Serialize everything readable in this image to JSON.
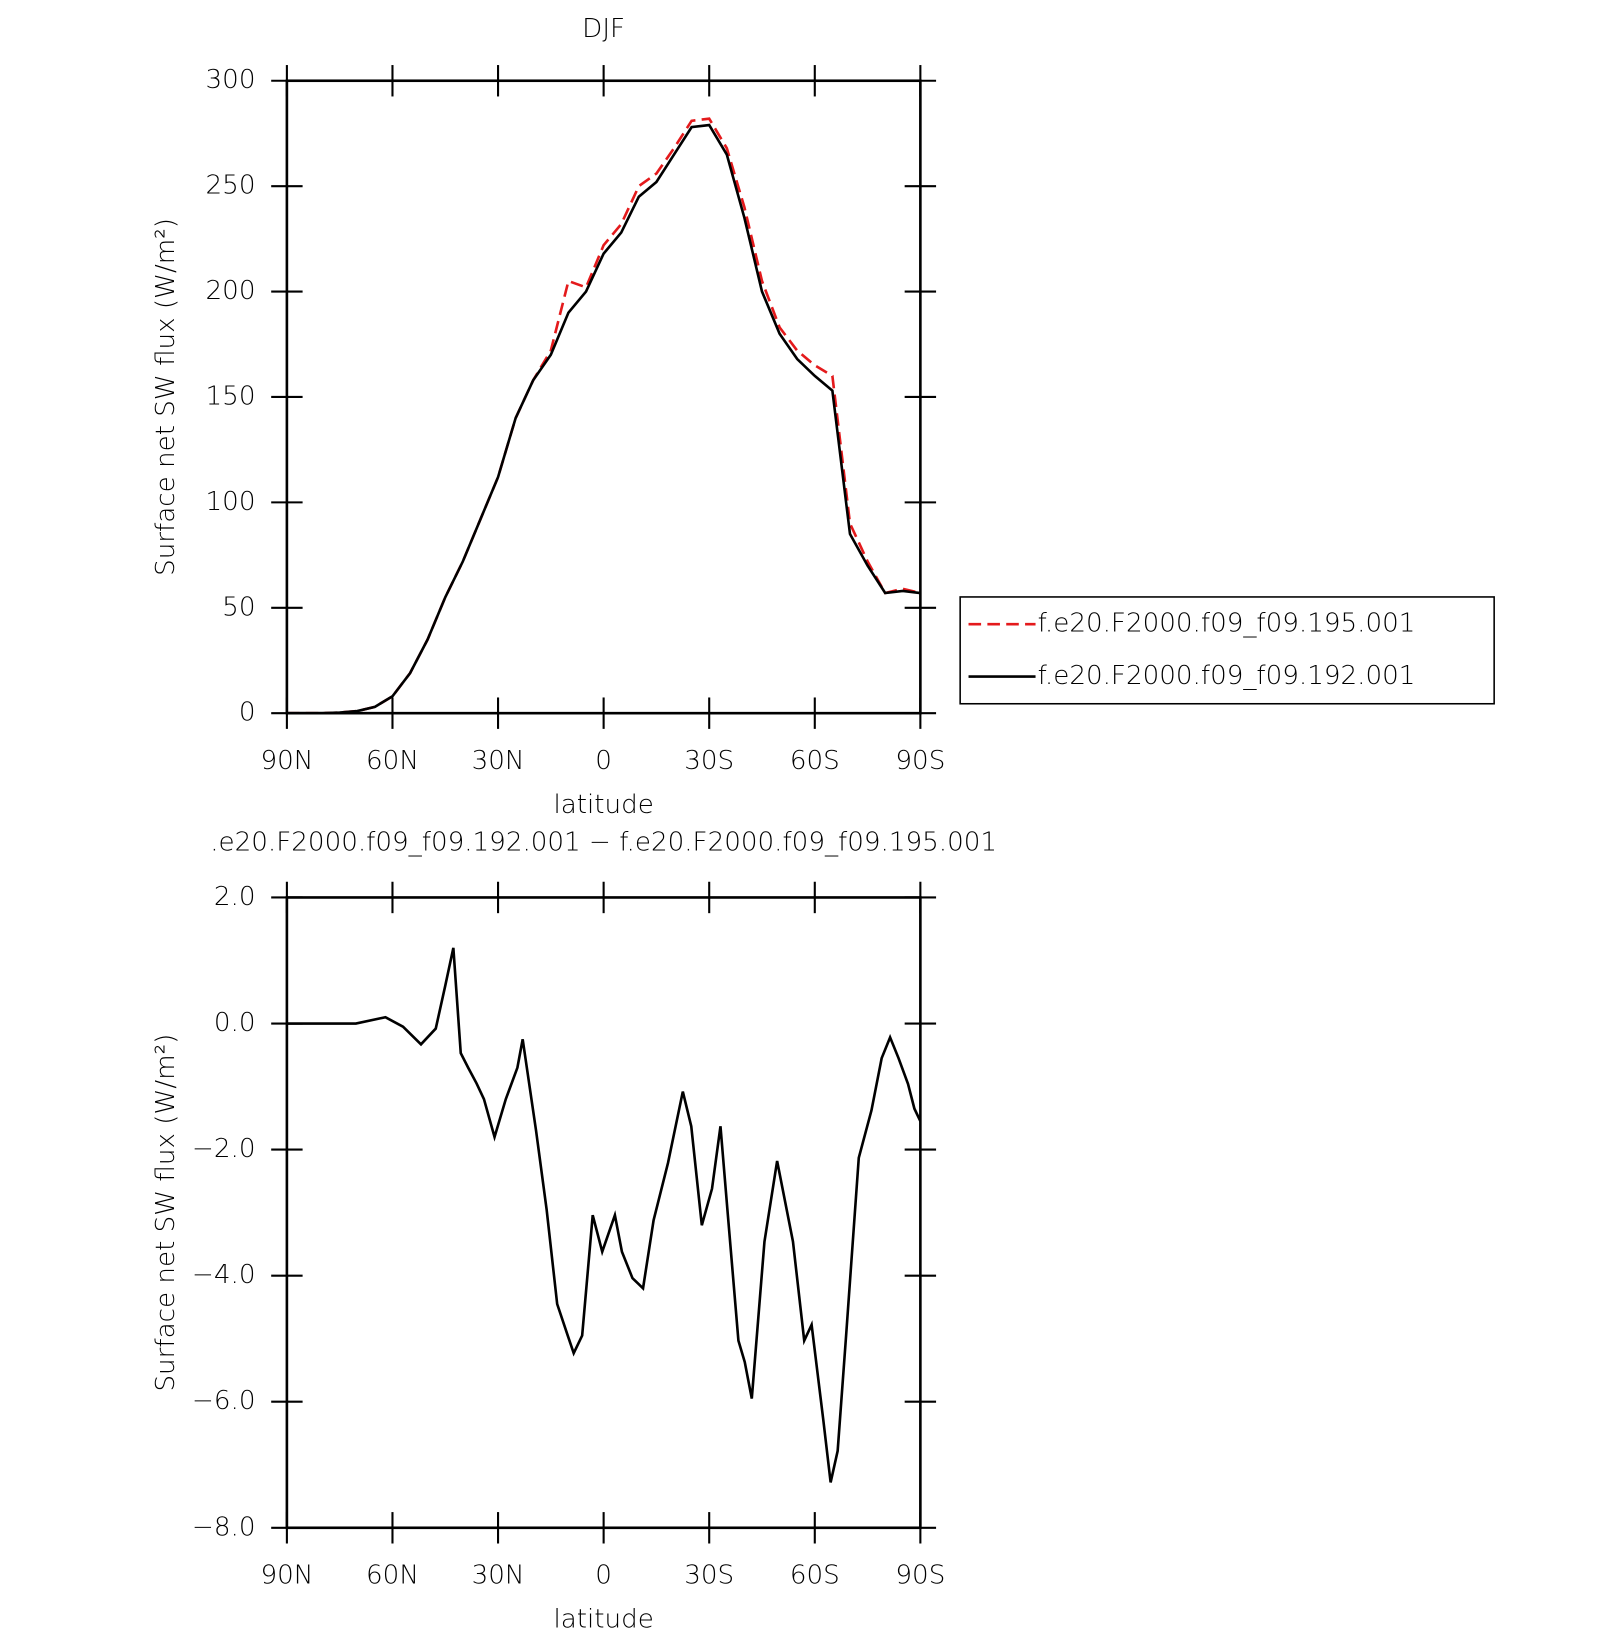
{
  "chart_data": [
    {
      "type": "line",
      "title": "DJF",
      "xlabel": "latitude",
      "ylabel": "Surface net SW flux (W/m²)",
      "x": [
        90,
        85,
        80,
        75,
        70,
        65,
        60,
        55,
        50,
        45,
        40,
        35,
        30,
        25,
        20,
        15,
        10,
        5,
        0,
        -5,
        -10,
        -15,
        -20,
        -25,
        -30,
        -35,
        -40,
        -45,
        -50,
        -55,
        -60,
        -65,
        -70,
        -75,
        -80,
        -85,
        -90
      ],
      "series": [
        {
          "name": "f.e20.F2000.f09_f09.195.001",
          "color": "#e41a1c",
          "dash": "dashed",
          "values": [
            0,
            0,
            0,
            0.3,
            1,
            3,
            8,
            19,
            35,
            55,
            72,
            92,
            112,
            140,
            158,
            172,
            205,
            202,
            222,
            232,
            250,
            256,
            268,
            281,
            282,
            268,
            240,
            205,
            183,
            172,
            165,
            160,
            90,
            72,
            57,
            59,
            57
          ]
        },
        {
          "name": "f.e20.F2000.f09_f09.192.001",
          "color": "#000000",
          "dash": "solid",
          "values": [
            0,
            0,
            0,
            0.3,
            1,
            3,
            8,
            19,
            35,
            55,
            72,
            92,
            112,
            140,
            158,
            170,
            190,
            200,
            218,
            228,
            245,
            252,
            265,
            278,
            279,
            265,
            235,
            200,
            180,
            168,
            160,
            153,
            85,
            70,
            57,
            58,
            57
          ]
        }
      ],
      "xlim": [
        90,
        -90
      ],
      "xticks": [
        {
          "value": 90,
          "label": "90N"
        },
        {
          "value": 60,
          "label": "60N"
        },
        {
          "value": 30,
          "label": "30N"
        },
        0,
        {
          "value": -30,
          "label": "30S"
        },
        {
          "value": -60,
          "label": "60S"
        },
        {
          "value": -90,
          "label": "90S"
        }
      ],
      "ylim": [
        0,
        300
      ],
      "yticks": [
        0,
        50,
        100,
        150,
        200,
        250,
        300
      ],
      "legend": "right"
    },
    {
      "type": "line",
      "title": ".e20.F2000.f09_f09.192.001 − f.e20.F2000.f09_f09.195.001",
      "xlabel": "latitude",
      "ylabel": "Surface net SW flux (W/m²)",
      "x": [
        90,
        70.4,
        62,
        57,
        51.9,
        47.7,
        45,
        42.7,
        40.6,
        38.5,
        36.1,
        34,
        31,
        27.8,
        24.5,
        23,
        19.2,
        16.2,
        13.2,
        10.2,
        8.5,
        6.1,
        3.1,
        0.4,
        -3.2,
        -5.2,
        -8.2,
        -11.2,
        -14.2,
        -18.3,
        -22.5,
        -24.9,
        -27.9,
        -30.8,
        -33.2,
        -35.3,
        -38.3,
        -40.1,
        -42.1,
        -45.7,
        -49.3,
        -53.8,
        -57,
        -59.1,
        -62.4,
        -64.5,
        -66.5,
        -68.9,
        -72.5,
        -76.1,
        -79,
        -81.4,
        -83.8,
        -86.5,
        -88.3,
        -90
      ],
      "series": [
        {
          "name": "f.e20.F2000.f09_f09.192.001 − f.e20.F2000.f09_f09.195.001",
          "color": "#000000",
          "dash": "solid",
          "values": [
            0,
            0,
            0.1,
            -0.05,
            -0.33,
            -0.08,
            0.6,
            1.2,
            -0.47,
            -0.7,
            -0.95,
            -1.2,
            -1.8,
            -1.2,
            -0.7,
            -0.25,
            -1.7,
            -2.95,
            -4.45,
            -4.95,
            -5.23,
            -4.95,
            -3.04,
            -3.62,
            -3.04,
            -3.62,
            -4.04,
            -4.2,
            -3.12,
            -2.21,
            -1.08,
            -1.63,
            -3.2,
            -2.62,
            -1.63,
            -3.04,
            -5.03,
            -5.37,
            -5.95,
            -3.46,
            -2.18,
            -3.46,
            -5.03,
            -4.78,
            -6.28,
            -7.28,
            -6.78,
            -4.95,
            -2.13,
            -1.38,
            -0.55,
            -0.22,
            -0.55,
            -0.96,
            -1.35,
            -1.55
          ]
        }
      ],
      "xlim": [
        90,
        -90
      ],
      "xticks": [
        {
          "value": 90,
          "label": "90N"
        },
        {
          "value": 60,
          "label": "60N"
        },
        {
          "value": 30,
          "label": "30N"
        },
        0,
        {
          "value": -30,
          "label": "30S"
        },
        {
          "value": -60,
          "label": "60S"
        },
        {
          "value": -90,
          "label": "90S"
        }
      ],
      "ylim": [
        -8,
        2
      ],
      "yticks": [
        {
          "value": 2,
          "label": "2.0"
        },
        {
          "value": 0,
          "label": "0.0"
        },
        {
          "value": -2,
          "label": "−2.0"
        },
        {
          "value": -4,
          "label": "−4.0"
        },
        {
          "value": -6,
          "label": "−6.0"
        },
        {
          "value": -8,
          "label": "−8.0"
        }
      ]
    }
  ]
}
